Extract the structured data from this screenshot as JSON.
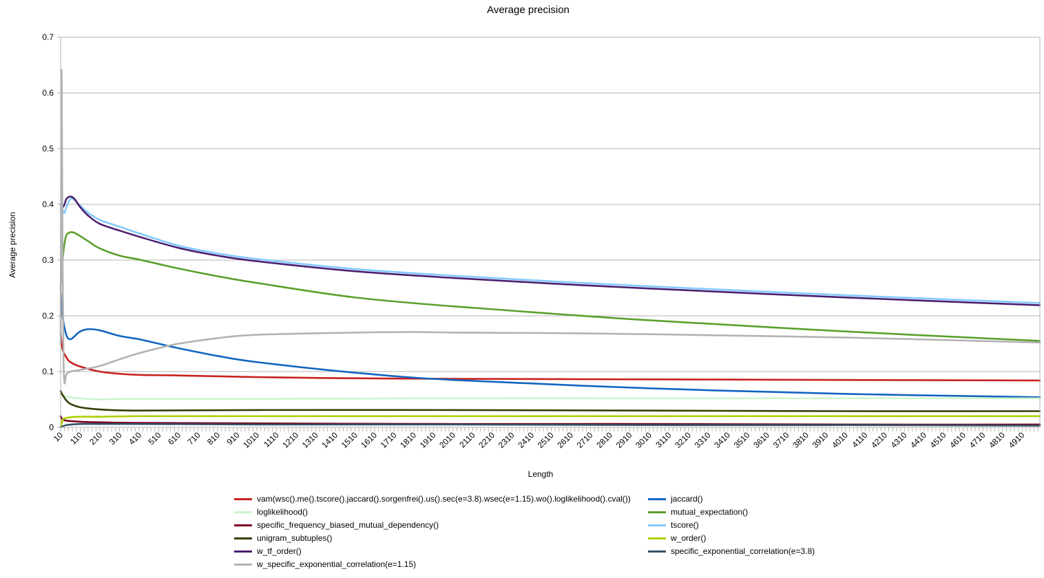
{
  "chart_data": {
    "type": "line",
    "title": "Average precision",
    "xlabel": "Length",
    "ylabel": "Average precision",
    "ylim": [
      0,
      0.7
    ],
    "yticks": [
      "0",
      "0.1",
      "0.2",
      "0.3",
      "0.4",
      "0.5",
      "0.6",
      "0.7"
    ],
    "xlim": [
      10,
      5000
    ],
    "xtick_labels": [
      "10",
      "110",
      "210",
      "310",
      "410",
      "510",
      "610",
      "710",
      "810",
      "910",
      "1010",
      "1110",
      "1210",
      "1310",
      "1410",
      "1510",
      "1610",
      "1710",
      "1810",
      "1910",
      "2010",
      "2110",
      "2210",
      "2310",
      "2410",
      "2510",
      "2610",
      "2710",
      "2810",
      "2910",
      "3010",
      "3110",
      "3210",
      "3310",
      "3410",
      "3510",
      "3610",
      "3710",
      "3810",
      "3910",
      "4010",
      "4110",
      "4210",
      "4310",
      "4410",
      "4510",
      "4610",
      "4710",
      "4810",
      "4910"
    ],
    "grid": true,
    "legend_position": "bottom",
    "series": [
      {
        "name": "vam(wsc().me().tscore().jaccard().sorgenfrei().us().sec(e=3.8).wsec(e=1.15).wo().loglikelihood().cval())",
        "color": "#c9211e",
        "x": [
          10,
          20,
          40,
          60,
          110,
          210,
          310,
          410,
          610,
          1010,
          1510,
          2010,
          3010,
          4010,
          5000
        ],
        "y": [
          0.17,
          0.14,
          0.125,
          0.117,
          0.109,
          0.1,
          0.096,
          0.094,
          0.093,
          0.09,
          0.088,
          0.087,
          0.086,
          0.085,
          0.084
        ]
      },
      {
        "name": "jaccard()",
        "color": "#1265c0",
        "x": [
          10,
          20,
          40,
          60,
          80,
          110,
          150,
          210,
          310,
          410,
          510,
          610,
          810,
          1010,
          1510,
          2010,
          3010,
          4010,
          5000
        ],
        "y": [
          0.25,
          0.2,
          0.165,
          0.158,
          0.163,
          0.172,
          0.176,
          0.174,
          0.164,
          0.158,
          0.15,
          0.142,
          0.128,
          0.117,
          0.098,
          0.085,
          0.07,
          0.06,
          0.054
        ]
      },
      {
        "name": "loglikelihood()",
        "color": "#ccf5cc",
        "x": [
          10,
          40,
          110,
          210,
          310,
          610,
          1010,
          2010,
          3010,
          4010,
          5000
        ],
        "y": [
          0.06,
          0.055,
          0.052,
          0.05,
          0.051,
          0.051,
          0.051,
          0.052,
          0.052,
          0.052,
          0.052
        ]
      },
      {
        "name": "mutual_expectation()",
        "color": "#5aa02c",
        "x": [
          10,
          20,
          30,
          40,
          60,
          80,
          110,
          150,
          210,
          310,
          410,
          610,
          810,
          1010,
          1510,
          2010,
          2510,
          3010,
          4010,
          5000
        ],
        "y": [
          0.25,
          0.3,
          0.33,
          0.345,
          0.35,
          0.349,
          0.343,
          0.334,
          0.321,
          0.308,
          0.301,
          0.285,
          0.271,
          0.259,
          0.233,
          0.217,
          0.204,
          0.192,
          0.172,
          0.155
        ]
      },
      {
        "name": "specific_frequency_biased_mutual_dependency()",
        "color": "#7b0022",
        "x": [
          10,
          20,
          40,
          110,
          210,
          410,
          1010,
          2010,
          3010,
          4010,
          5000
        ],
        "y": [
          0.02,
          0.014,
          0.012,
          0.01,
          0.009,
          0.008,
          0.007,
          0.006,
          0.006,
          0.005,
          0.005
        ]
      },
      {
        "name": "tscore()",
        "color": "#83caff",
        "x": [
          10,
          20,
          30,
          40,
          60,
          80,
          110,
          150,
          210,
          310,
          410,
          610,
          810,
          1010,
          1510,
          2010,
          2510,
          3010,
          4010,
          5000
        ],
        "y": [
          0.39,
          0.39,
          0.385,
          0.395,
          0.41,
          0.408,
          0.398,
          0.385,
          0.372,
          0.36,
          0.348,
          0.326,
          0.312,
          0.302,
          0.284,
          0.272,
          0.262,
          0.253,
          0.237,
          0.223
        ]
      },
      {
        "name": "unigram_subtuples()",
        "color": "#314004",
        "x": [
          10,
          20,
          40,
          60,
          110,
          210,
          410,
          1010,
          2010,
          3010,
          4010,
          5000
        ],
        "y": [
          0.065,
          0.058,
          0.048,
          0.042,
          0.036,
          0.032,
          0.03,
          0.031,
          0.031,
          0.03,
          0.029,
          0.029
        ]
      },
      {
        "name": "w_order()",
        "color": "#aecf00",
        "x": [
          10,
          20,
          30,
          60,
          110,
          210,
          410,
          1010,
          2010,
          3010,
          4010,
          5000
        ],
        "y": [
          0.0,
          0.012,
          0.016,
          0.018,
          0.019,
          0.019,
          0.02,
          0.02,
          0.02,
          0.02,
          0.02,
          0.02
        ]
      },
      {
        "name": "w_tf_order()",
        "color": "#4b1f6f",
        "x": [
          10,
          20,
          30,
          40,
          60,
          80,
          110,
          150,
          210,
          310,
          410,
          610,
          810,
          1010,
          1510,
          2010,
          2510,
          3010,
          4010,
          5000
        ],
        "y": [
          0.4,
          0.395,
          0.4,
          0.41,
          0.414,
          0.41,
          0.395,
          0.38,
          0.365,
          0.353,
          0.342,
          0.322,
          0.308,
          0.298,
          0.28,
          0.268,
          0.258,
          0.249,
          0.233,
          0.219
        ]
      },
      {
        "name": "specific_exponential_correlation(e=3.8)",
        "color": "#355269",
        "x": [
          10,
          40,
          110,
          210,
          410,
          1010,
          2010,
          3010,
          4010,
          5000
        ],
        "y": [
          0.0,
          0.004,
          0.006,
          0.006,
          0.006,
          0.005,
          0.005,
          0.004,
          0.004,
          0.003
        ]
      },
      {
        "name": "w_specific_exponential_correlation(e=1.15)",
        "color": "#b2b2b2",
        "x": [
          10,
          15,
          20,
          25,
          30,
          35,
          40,
          60,
          110,
          210,
          310,
          410,
          510,
          610,
          810,
          1010,
          1510,
          1810,
          2010,
          2510,
          3010,
          4010,
          5000
        ],
        "y": [
          0.15,
          0.64,
          0.3,
          0.12,
          0.08,
          0.088,
          0.095,
          0.1,
          0.103,
          0.11,
          0.122,
          0.133,
          0.142,
          0.15,
          0.16,
          0.166,
          0.17,
          0.171,
          0.17,
          0.169,
          0.167,
          0.161,
          0.152
        ]
      }
    ]
  }
}
